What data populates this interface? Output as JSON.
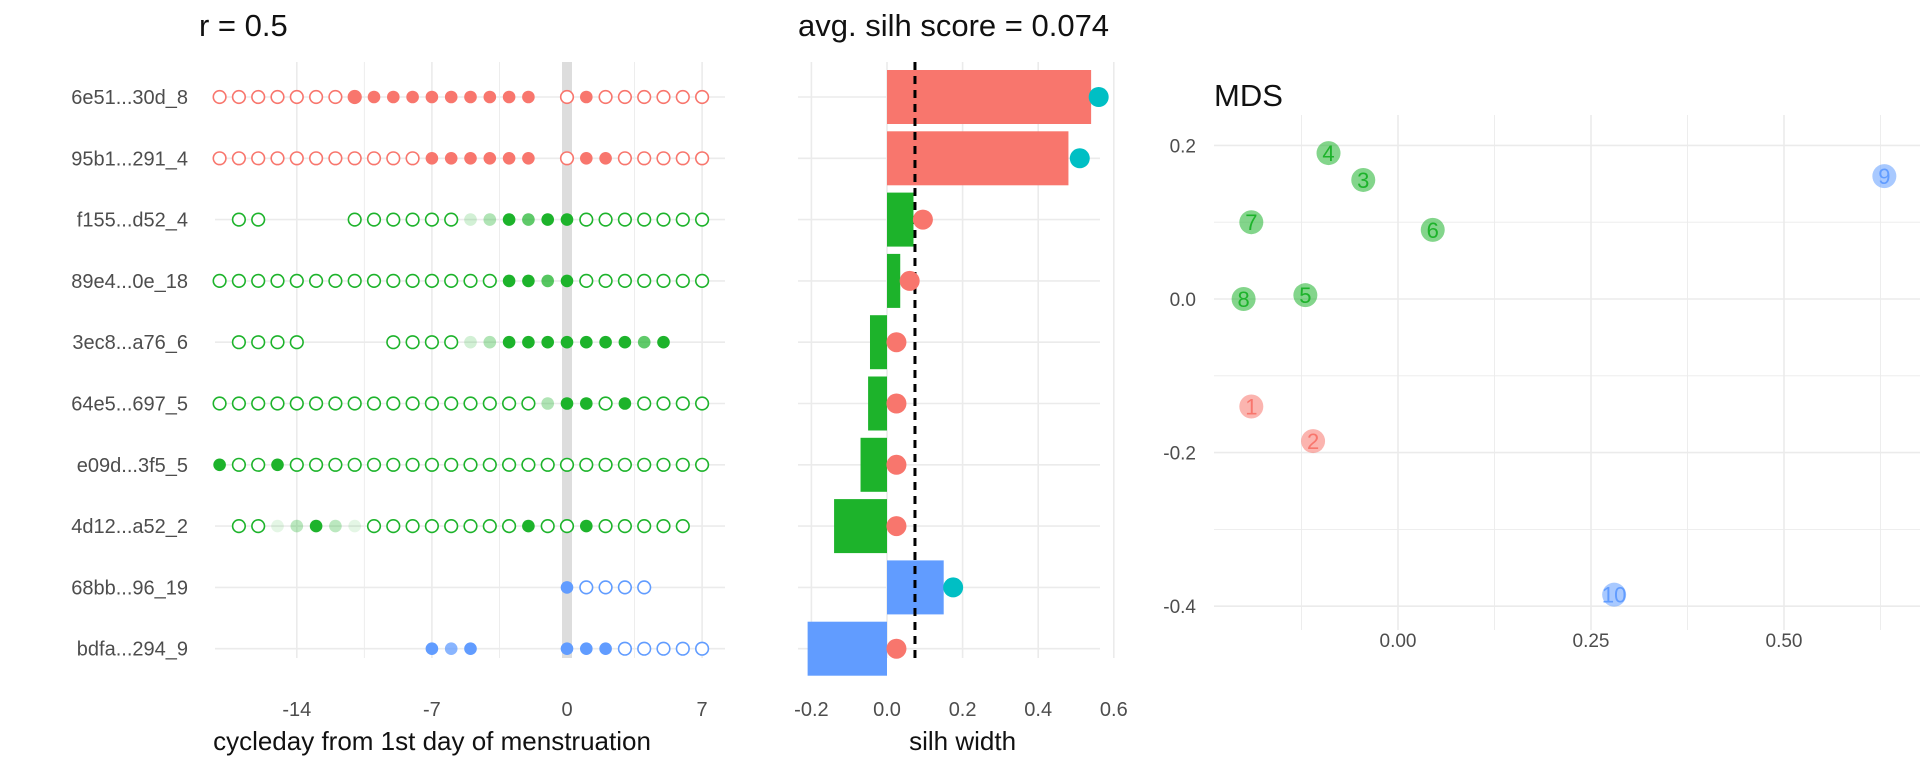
{
  "panels": {
    "left_title": "r = 0.5",
    "middle_title": "avg. silh score = 0.074",
    "right_title": "MDS"
  },
  "colors": {
    "red": "#F8766D",
    "green": "#1DB32B",
    "blue": "#619CFF",
    "teal": "#00BFC4",
    "grid": "#EBEBEB",
    "zero_band": "#DDDDDD"
  },
  "chart_data": [
    {
      "type": "scatter",
      "description_key": "cycle_dotplot",
      "xlabel": "cycleday from 1st day of menstruation",
      "ylabel": "",
      "xlim": [
        -18,
        7.5
      ],
      "xticks": [
        -14,
        -7,
        0,
        7
      ],
      "grid": true,
      "rows": [
        {
          "label": "6e51...30d_8",
          "color": "red",
          "open": [
            -18,
            -17,
            -16,
            -15,
            -14,
            -13,
            -12,
            -11,
            0,
            2,
            3,
            4,
            5,
            6,
            7
          ],
          "filled": [
            -11,
            -10,
            -9,
            -8,
            -7,
            -6,
            -5,
            -4,
            -3,
            -2,
            1
          ],
          "faded": []
        },
        {
          "label": "95b1...291_4",
          "color": "red",
          "open": [
            -18,
            -17,
            -16,
            -15,
            -14,
            -13,
            -12,
            -11,
            -10,
            -9,
            -8,
            0,
            3,
            4,
            5,
            6,
            7
          ],
          "filled": [
            -7,
            -6,
            -5,
            -4,
            -3,
            -2,
            1,
            2
          ],
          "faded": []
        },
        {
          "label": "f155...d52_4",
          "color": "green",
          "open": [
            -17,
            -16,
            -11,
            -10,
            -9,
            -8,
            -7,
            -6,
            1,
            2,
            3,
            4,
            5,
            6,
            7
          ],
          "filled": [
            -3,
            -1,
            0
          ],
          "faded": [
            [
              -5,
              0.2
            ],
            [
              -4,
              0.35
            ],
            [
              -2,
              0.7
            ]
          ]
        },
        {
          "label": "89e4...0e_18",
          "color": "green",
          "open": [
            -18,
            -17,
            -16,
            -15,
            -14,
            -13,
            -12,
            -11,
            -10,
            -9,
            -8,
            -7,
            -6,
            -5,
            -4,
            1,
            2,
            3,
            4,
            5,
            6,
            7
          ],
          "filled": [
            -3,
            -2,
            0
          ],
          "faded": [
            [
              -1,
              0.75
            ]
          ]
        },
        {
          "label": "3ec8...a76_6",
          "color": "green",
          "open": [
            -17,
            -16,
            -15,
            -14,
            -9,
            -8,
            -7,
            -6
          ],
          "filled": [
            -3,
            -2,
            -1,
            0,
            1,
            2,
            3,
            5
          ],
          "faded": [
            [
              -5,
              0.2
            ],
            [
              -4,
              0.35
            ],
            [
              4,
              0.7
            ]
          ]
        },
        {
          "label": "64e5...697_5",
          "color": "green",
          "open": [
            -18,
            -17,
            -16,
            -15,
            -14,
            -13,
            -12,
            -11,
            -10,
            -9,
            -8,
            -7,
            -6,
            -5,
            -4,
            -3,
            -2,
            2,
            4,
            5,
            6,
            7
          ],
          "filled": [
            0,
            1,
            3
          ],
          "faded": [
            [
              -1,
              0.35
            ]
          ]
        },
        {
          "label": "e09d...3f5_5",
          "color": "green",
          "open": [
            -17,
            -16,
            -14,
            -13,
            -12,
            -11,
            -10,
            -9,
            -8,
            -7,
            -6,
            -5,
            -4,
            -3,
            -2,
            -1,
            0,
            1,
            2,
            3,
            4,
            5,
            6,
            7
          ],
          "filled": [
            -18,
            -15
          ],
          "faded": []
        },
        {
          "label": "4d12...a52_2",
          "color": "green",
          "open": [
            -17,
            -16,
            -10,
            -9,
            -8,
            -7,
            -6,
            -5,
            -4,
            -3,
            -1,
            0,
            2,
            3,
            4,
            5,
            6
          ],
          "filled": [
            -13,
            -2,
            1
          ],
          "faded": [
            [
              -15,
              0.12
            ],
            [
              -14,
              0.3
            ],
            [
              -12,
              0.3
            ],
            [
              -11,
              0.12
            ]
          ]
        },
        {
          "label": "68bb...96_19",
          "color": "blue",
          "open": [
            1,
            2,
            3,
            4
          ],
          "filled": [
            0
          ],
          "faded": []
        },
        {
          "label": "bdfa...294_9",
          "color": "blue",
          "open": [
            3,
            4,
            5,
            6,
            7
          ],
          "filled": [
            -7,
            -5,
            0,
            1,
            2
          ],
          "faded": [
            [
              -6,
              0.75
            ]
          ]
        }
      ]
    },
    {
      "type": "bar",
      "description_key": "silhouette",
      "xlabel": "silh width",
      "xlim": [
        -0.23,
        0.62
      ],
      "xticks": [
        -0.2,
        0.0,
        0.2,
        0.4,
        0.6
      ],
      "xtick_labels": [
        "-0.2",
        "0.0",
        "0.2",
        "0.4",
        "0.6"
      ],
      "avg_line": 0.074,
      "categories": [
        "6e51...30d_8",
        "95b1...291_4",
        "f155...d52_4",
        "89e4...0e_18",
        "3ec8...a76_6",
        "64e5...697_5",
        "e09d...3f5_5",
        "4d12...a52_2",
        "68bb...96_19",
        "bdfa...294_9"
      ],
      "values": [
        0.54,
        0.48,
        0.07,
        0.035,
        -0.045,
        -0.05,
        -0.07,
        -0.14,
        0.15,
        -0.21
      ],
      "bar_colors": [
        "red",
        "red",
        "green",
        "green",
        "green",
        "green",
        "green",
        "green",
        "blue",
        "blue"
      ],
      "neighbor_points": [
        {
          "x": 0.56,
          "color": "teal"
        },
        {
          "x": 0.51,
          "color": "teal"
        },
        {
          "x": 0.095,
          "color": "red"
        },
        {
          "x": 0.06,
          "color": "red"
        },
        {
          "x": 0.025,
          "color": "red"
        },
        {
          "x": 0.025,
          "color": "red"
        },
        {
          "x": 0.025,
          "color": "red"
        },
        {
          "x": 0.025,
          "color": "red"
        },
        {
          "x": 0.175,
          "color": "teal"
        },
        {
          "x": 0.025,
          "color": "red"
        }
      ]
    },
    {
      "type": "scatter",
      "description_key": "mds",
      "xlim": [
        -0.265,
        0.665
      ],
      "ylim": [
        -0.44,
        0.22
      ],
      "xticks": [
        0.0,
        0.25,
        0.5
      ],
      "xtick_labels": [
        "0.00",
        "0.25",
        "0.50"
      ],
      "yticks": [
        0.2,
        0.0,
        -0.2,
        -0.4
      ],
      "ytick_labels": [
        "0.2",
        "0.0",
        "-0.2",
        "-0.4"
      ],
      "grid": true,
      "points": [
        {
          "label": "1",
          "x": -0.19,
          "y": -0.14,
          "color": "red"
        },
        {
          "label": "2",
          "x": -0.11,
          "y": -0.185,
          "color": "red"
        },
        {
          "label": "3",
          "x": -0.045,
          "y": 0.155,
          "color": "green"
        },
        {
          "label": "4",
          "x": -0.09,
          "y": 0.19,
          "color": "green"
        },
        {
          "label": "5",
          "x": -0.12,
          "y": 0.005,
          "color": "green"
        },
        {
          "label": "6",
          "x": 0.045,
          "y": 0.09,
          "color": "green"
        },
        {
          "label": "7",
          "x": -0.19,
          "y": 0.1,
          "color": "green"
        },
        {
          "label": "8",
          "x": -0.2,
          "y": 0.0,
          "color": "green"
        },
        {
          "label": "9",
          "x": 0.63,
          "y": 0.16,
          "color": "blue"
        },
        {
          "label": "10",
          "x": 0.28,
          "y": -0.385,
          "color": "blue"
        }
      ]
    }
  ]
}
